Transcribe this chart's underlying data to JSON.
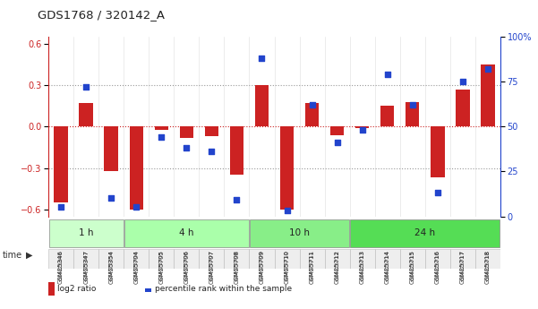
{
  "title": "GDS1768 / 320142_A",
  "samples": [
    "GSM25346",
    "GSM25347",
    "GSM25354",
    "GSM25704",
    "GSM25705",
    "GSM25706",
    "GSM25707",
    "GSM25708",
    "GSM25709",
    "GSM25710",
    "GSM25711",
    "GSM25712",
    "GSM25713",
    "GSM25714",
    "GSM25715",
    "GSM25716",
    "GSM25717",
    "GSM25718"
  ],
  "log2_ratio": [
    -0.55,
    0.17,
    -0.32,
    -0.6,
    -0.02,
    -0.08,
    -0.07,
    -0.35,
    0.3,
    -0.6,
    0.17,
    -0.06,
    -0.01,
    0.15,
    0.18,
    -0.37,
    0.27,
    0.45
  ],
  "percentile": [
    5,
    72,
    10,
    5,
    44,
    38,
    36,
    9,
    88,
    3,
    62,
    41,
    48,
    79,
    62,
    13,
    75,
    82
  ],
  "groups": [
    {
      "label": "1 h",
      "start": 0,
      "end": 3,
      "color": "#ccffcc"
    },
    {
      "label": "4 h",
      "start": 3,
      "end": 8,
      "color": "#aaffaa"
    },
    {
      "label": "10 h",
      "start": 8,
      "end": 12,
      "color": "#88ee88"
    },
    {
      "label": "24 h",
      "start": 12,
      "end": 18,
      "color": "#55dd55"
    }
  ],
  "bar_color": "#cc2222",
  "dot_color": "#2244cc",
  "ylim_left": [
    -0.65,
    0.65
  ],
  "ylim_right": [
    0,
    100
  ],
  "yticks_left": [
    -0.6,
    -0.3,
    0.0,
    0.3,
    0.6
  ],
  "yticks_right": [
    0,
    25,
    50,
    75,
    100
  ],
  "ytick_labels_right": [
    "0",
    "25",
    "50",
    "75",
    "100%"
  ],
  "hlines": [
    -0.3,
    0.0,
    0.3
  ],
  "hline_colors": [
    "#999999",
    "#cc2222",
    "#999999"
  ],
  "bg_color": "#ffffff",
  "legend_log2_color": "#cc2222",
  "legend_dot_color": "#2244cc"
}
